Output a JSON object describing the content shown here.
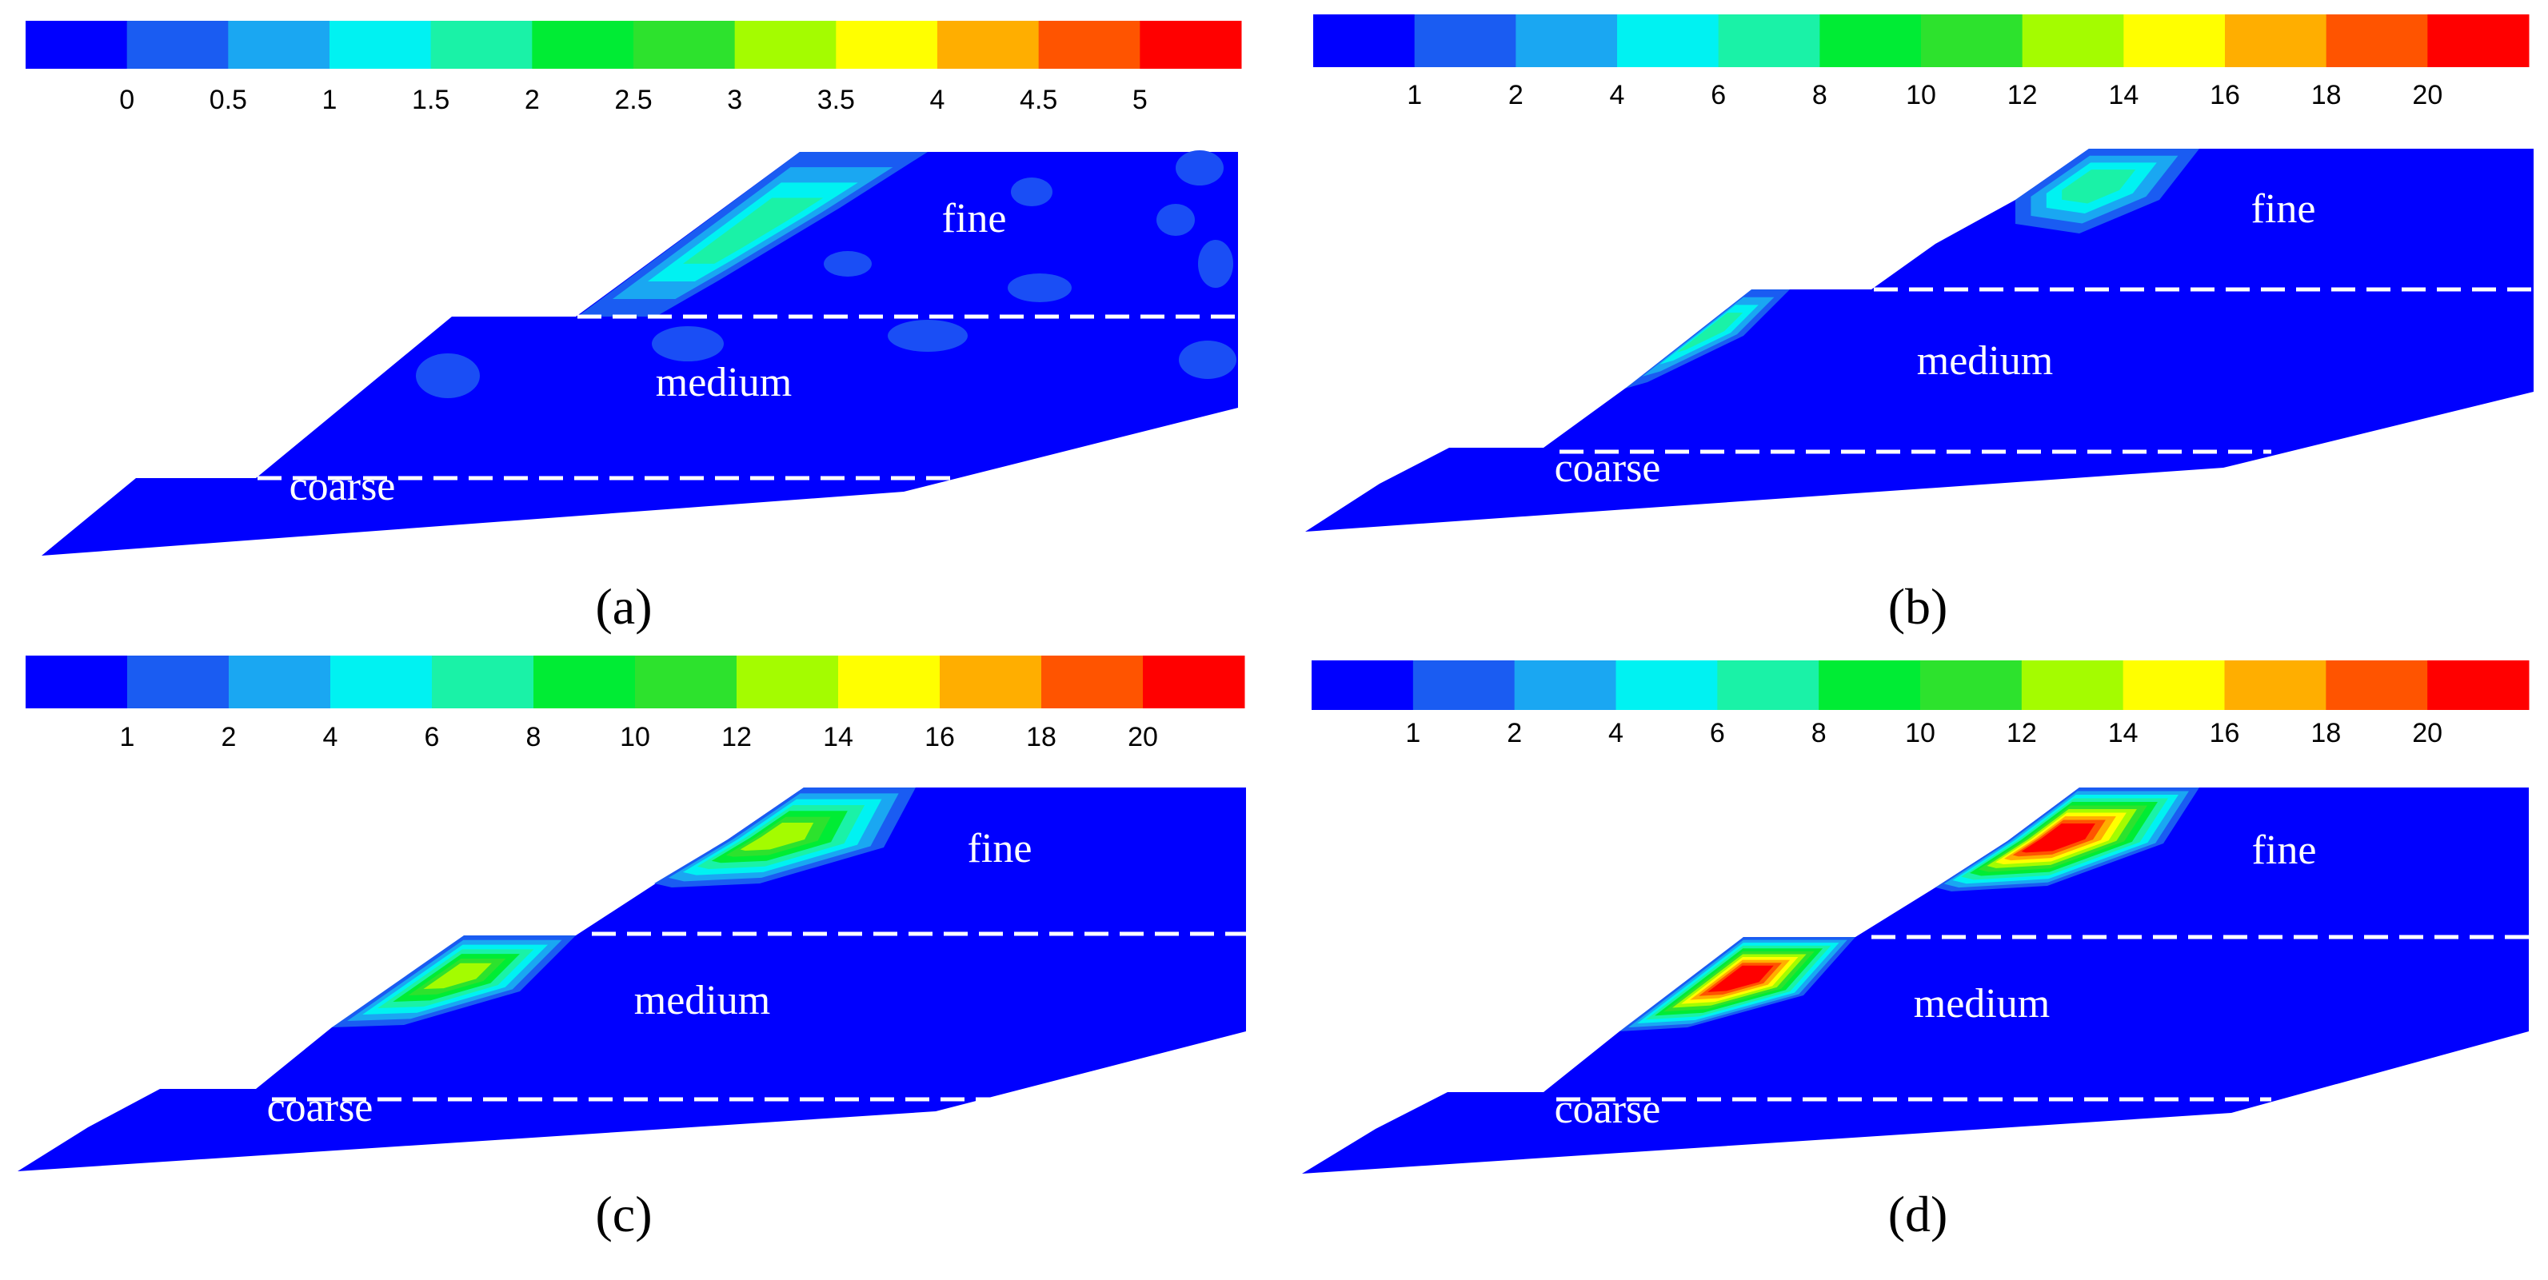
{
  "figure": {
    "panels": [
      {
        "id": "a",
        "caption": "(a)",
        "colorbar": {
          "tick_labels": [
            "0",
            "0.5",
            "1",
            "1.5",
            "2",
            "2.5",
            "3",
            "3.5",
            "4",
            "4.5",
            "5"
          ],
          "colors": [
            "#0000ff",
            "#1a5cf2",
            "#1aa7f2",
            "#00f2f2",
            "#1af2a7",
            "#00ec34",
            "#2de22d",
            "#a4fc00",
            "#ffff00",
            "#ffae00",
            "#ff5400",
            "#ff0000"
          ]
        },
        "layers": [
          "fine",
          "medium",
          "coarse"
        ],
        "hotspot": "cyan band along upper slope face",
        "hotspot_levels": 4
      },
      {
        "id": "b",
        "caption": "(b)",
        "colorbar": {
          "tick_labels": [
            "1",
            "2",
            "4",
            "6",
            "8",
            "10",
            "12",
            "14",
            "16",
            "18",
            "20"
          ],
          "colors": [
            "#0000ff",
            "#1a5cf2",
            "#1aa7f2",
            "#00f2f2",
            "#1af2a7",
            "#00ec34",
            "#2de22d",
            "#a4fc00",
            "#ffff00",
            "#ffae00",
            "#ff5400",
            "#ff0000"
          ]
        },
        "layers": [
          "fine",
          "medium",
          "coarse"
        ],
        "hotspot_levels": 4
      },
      {
        "id": "c",
        "caption": "(c)",
        "colorbar": {
          "tick_labels": [
            "1",
            "2",
            "4",
            "6",
            "8",
            "10",
            "12",
            "14",
            "16",
            "18",
            "20"
          ],
          "colors": [
            "#0000ff",
            "#1a5cf2",
            "#1aa7f2",
            "#00f2f2",
            "#1af2a7",
            "#00ec34",
            "#2de22d",
            "#a4fc00",
            "#ffff00",
            "#ffae00",
            "#ff5400",
            "#ff0000"
          ]
        },
        "layers": [
          "fine",
          "medium",
          "coarse"
        ],
        "hotspot_levels": 7
      },
      {
        "id": "d",
        "caption": "(d)",
        "colorbar": {
          "tick_labels": [
            "1",
            "2",
            "4",
            "6",
            "8",
            "10",
            "12",
            "14",
            "16",
            "18",
            "20"
          ],
          "colors": [
            "#0000ff",
            "#1a5cf2",
            "#1aa7f2",
            "#00f2f2",
            "#1af2a7",
            "#00ec34",
            "#2de22d",
            "#a4fc00",
            "#ffff00",
            "#ffae00",
            "#ff5400",
            "#ff0000"
          ]
        },
        "layers": [
          "fine",
          "medium",
          "coarse"
        ],
        "hotspot_levels": 12
      }
    ],
    "palette": {
      "slope_fill": "#0000ff",
      "layer_text": "#ffffff",
      "boundary_line": "#ffffff",
      "caption_text": "#000000"
    }
  }
}
